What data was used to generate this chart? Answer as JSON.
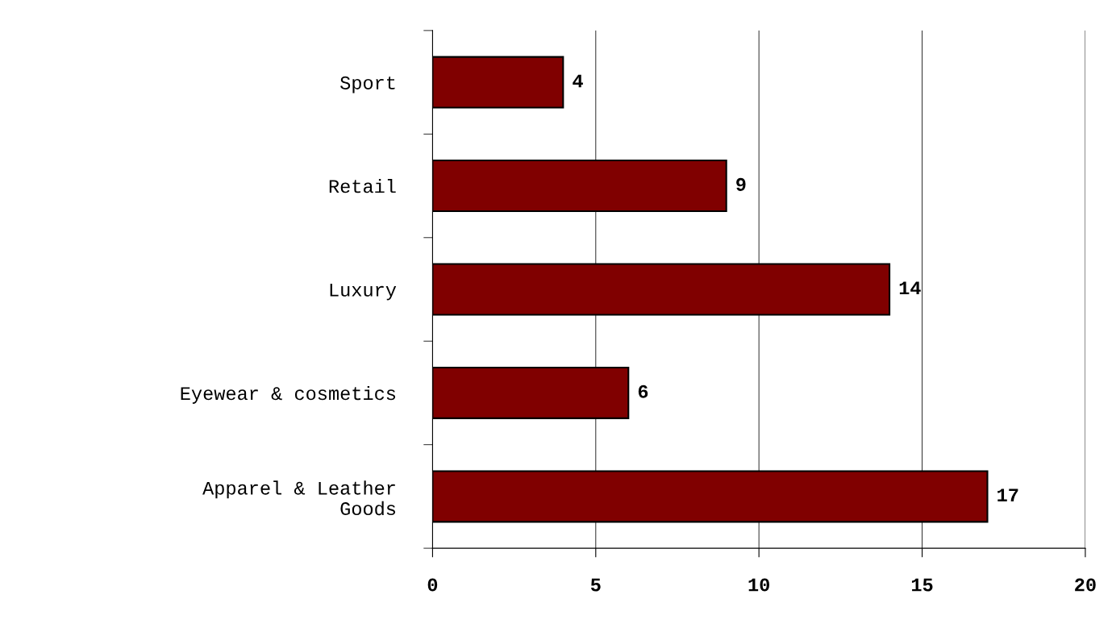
{
  "chart_data": {
    "type": "bar",
    "orientation": "horizontal",
    "categories": [
      "Sport",
      "Retail",
      "Luxury",
      "Eyewear & cosmetics",
      "Apparel & Leather\nGoods"
    ],
    "values": [
      4,
      9,
      14,
      6,
      17
    ],
    "color": "#800000",
    "xlim": [
      0,
      20
    ],
    "xticks": [
      0,
      5,
      10,
      15,
      20
    ],
    "grid": "x",
    "data_labels": true,
    "legend": false
  }
}
